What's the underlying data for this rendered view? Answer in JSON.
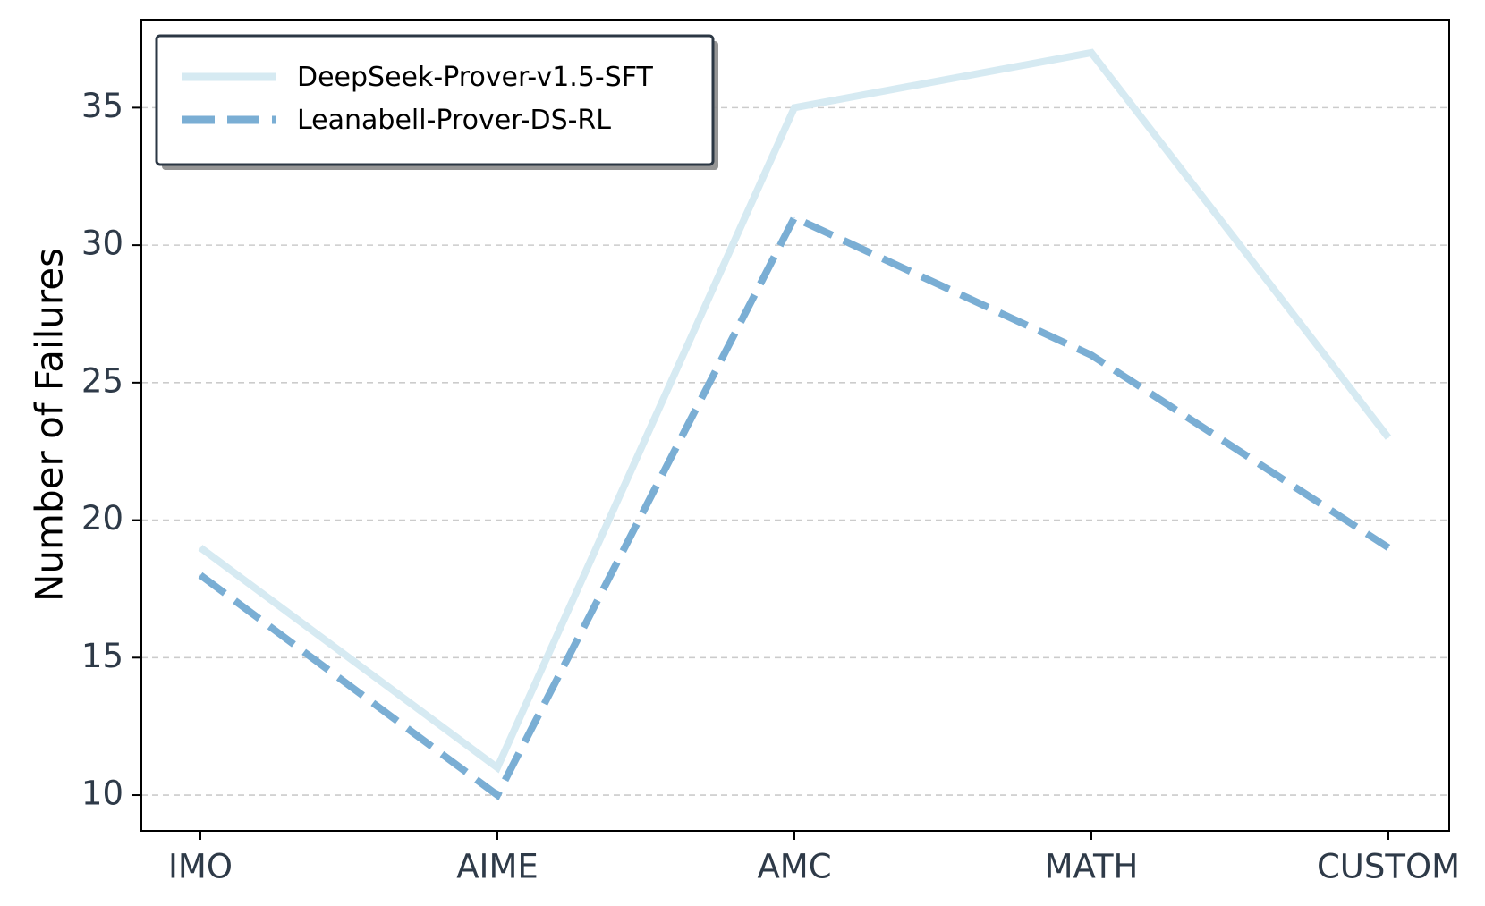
{
  "chart_data": {
    "type": "line",
    "title": "",
    "xlabel": "",
    "ylabel": "Number of Failures",
    "categories": [
      "IMO",
      "AIME",
      "AMC",
      "MATH",
      "CUSTOM"
    ],
    "ylim": [
      8.7,
      38.2
    ],
    "yticks": [
      10,
      15,
      20,
      25,
      30,
      35
    ],
    "grid": "horizontal dashed",
    "legend_position": "upper-left",
    "series": [
      {
        "name": "DeepSeek-Prover-v1.5-SFT",
        "values": [
          19,
          11,
          35,
          37,
          23
        ],
        "color": "#d6eaf2",
        "style": "solid"
      },
      {
        "name": "Leanabell-Prover-DS-RL",
        "values": [
          18,
          10,
          31,
          26,
          19
        ],
        "color": "#7aaed4",
        "style": "dashed"
      }
    ]
  }
}
